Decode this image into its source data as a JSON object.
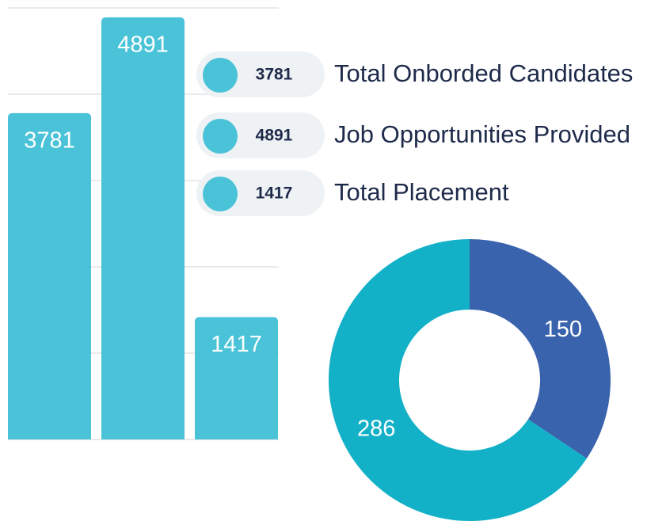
{
  "chart_data": [
    {
      "type": "bar",
      "categories": [
        "Total Onborded Candidates",
        "Job Opportunities Provided",
        "Total Placement"
      ],
      "values": [
        3781,
        4891,
        1417
      ],
      "color": "#4ac3d9",
      "ylim": [
        0,
        5000
      ],
      "yticks": [
        0,
        1000,
        2000,
        3000,
        4000,
        5000
      ],
      "grid": true,
      "legend": "right"
    },
    {
      "type": "pie",
      "values": [
        150,
        286
      ],
      "colors": [
        "#3a63ad",
        "#13b1c8"
      ],
      "donut": true
    }
  ]
}
